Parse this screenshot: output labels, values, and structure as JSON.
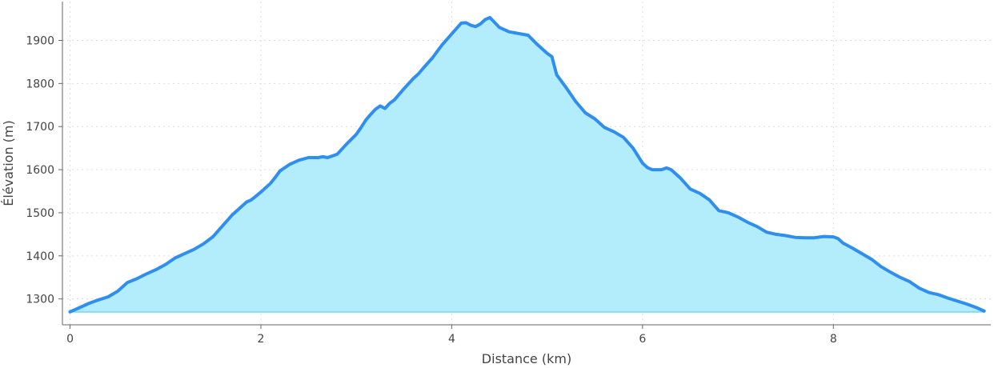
{
  "chart_data": {
    "type": "area",
    "xlabel": "Distance (km)",
    "ylabel": "Élévation (m)",
    "xlim": [
      -0.08,
      9.65
    ],
    "ylim": [
      1240,
      1990
    ],
    "x_ticks": [
      "0",
      "2",
      "4",
      "6",
      "8"
    ],
    "y_ticks": [
      "1300",
      "1400",
      "1500",
      "1600",
      "1700",
      "1800",
      "1900"
    ],
    "grid": true,
    "fill_baseline": 1270,
    "colors": {
      "line": "#2f8ff0",
      "fill": "#b3ecfb",
      "baseline": "#86dcf2"
    },
    "series": [
      {
        "x": [
          0,
          0.1,
          0.2,
          0.3,
          0.4,
          0.5,
          0.6,
          0.7,
          0.8,
          0.9,
          1.0,
          1.1,
          1.2,
          1.3,
          1.4,
          1.5,
          1.6,
          1.7,
          1.8,
          1.85,
          1.9,
          2.0,
          2.05,
          2.1,
          2.15,
          2.2,
          2.3,
          2.4,
          2.5,
          2.6,
          2.65,
          2.7,
          2.8,
          2.9,
          3.0,
          3.05,
          3.1,
          3.15,
          3.2,
          3.25,
          3.3,
          3.35,
          3.4,
          3.45,
          3.5,
          3.6,
          3.65,
          3.7,
          3.8,
          3.85,
          3.9,
          4.0,
          4.1,
          4.15,
          4.2,
          4.25,
          4.3,
          4.35,
          4.4,
          4.5,
          4.6,
          4.7,
          4.8,
          4.9,
          5.0,
          5.05,
          5.1,
          5.2,
          5.3,
          5.4,
          5.5,
          5.6,
          5.7,
          5.8,
          5.9,
          6.0,
          6.05,
          6.1,
          6.2,
          6.25,
          6.3,
          6.4,
          6.5,
          6.6,
          6.7,
          6.8,
          6.9,
          7.0,
          7.1,
          7.2,
          7.3,
          7.4,
          7.5,
          7.6,
          7.7,
          7.8,
          7.9,
          8.0,
          8.05,
          8.1,
          8.2,
          8.3,
          8.4,
          8.5,
          8.6,
          8.7,
          8.8,
          8.9,
          9.0,
          9.1,
          9.2,
          9.3,
          9.4,
          9.5,
          9.58
        ],
        "y": [
          1270,
          1280,
          1290,
          1298,
          1305,
          1318,
          1338,
          1347,
          1358,
          1368,
          1380,
          1395,
          1405,
          1415,
          1428,
          1445,
          1470,
          1495,
          1515,
          1525,
          1530,
          1548,
          1558,
          1568,
          1582,
          1597,
          1612,
          1622,
          1628,
          1628,
          1630,
          1628,
          1636,
          1660,
          1682,
          1698,
          1715,
          1728,
          1740,
          1748,
          1742,
          1754,
          1762,
          1775,
          1788,
          1812,
          1822,
          1835,
          1860,
          1875,
          1890,
          1915,
          1940,
          1941,
          1935,
          1932,
          1938,
          1948,
          1953,
          1930,
          1920,
          1916,
          1912,
          1890,
          1870,
          1862,
          1820,
          1790,
          1758,
          1732,
          1718,
          1698,
          1688,
          1675,
          1650,
          1615,
          1605,
          1600,
          1600,
          1604,
          1600,
          1580,
          1555,
          1545,
          1530,
          1505,
          1500,
          1490,
          1478,
          1468,
          1455,
          1450,
          1447,
          1443,
          1442,
          1442,
          1445,
          1444,
          1440,
          1430,
          1418,
          1405,
          1392,
          1375,
          1362,
          1350,
          1340,
          1325,
          1315,
          1310,
          1302,
          1295,
          1288,
          1280,
          1272
        ]
      }
    ]
  }
}
